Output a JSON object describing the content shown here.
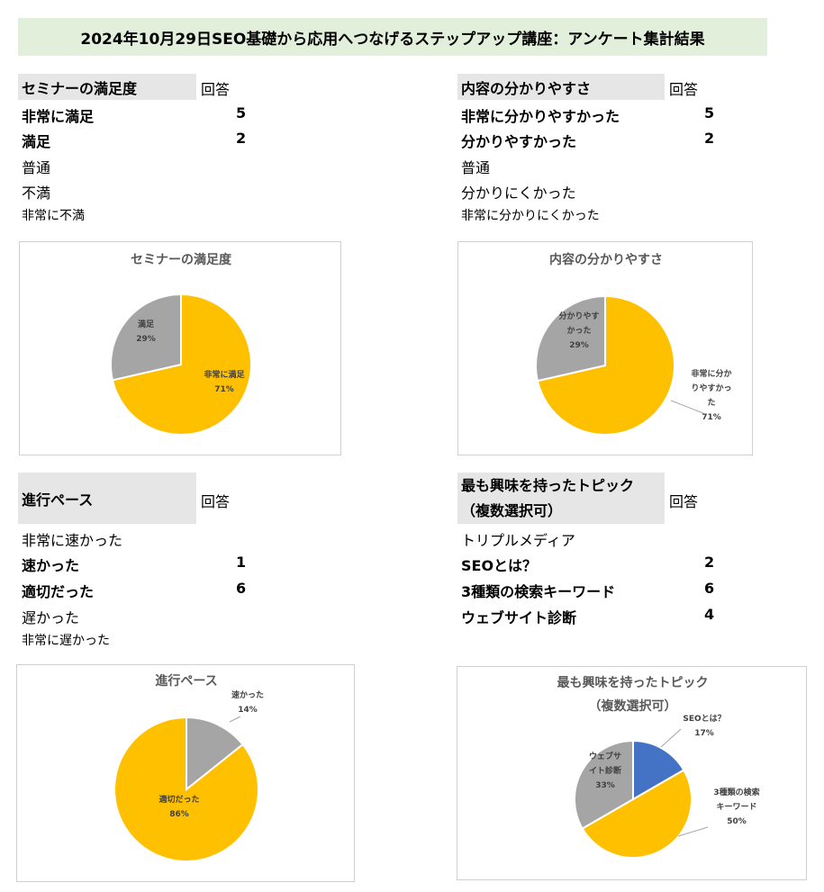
{
  "title": "2024年10月29日SEO基礎から応用へつなげるステップアップ講座：アンケート集計結果",
  "sections": [
    {
      "header": "セミナーの満足度",
      "answer_label": "回答",
      "rows": [
        {
          "label": "非常に満足",
          "value": "5"
        },
        {
          "label": "満足",
          "value": "2"
        },
        {
          "label": "普通",
          "value": ""
        },
        {
          "label": "不満",
          "value": ""
        },
        {
          "label": "非常に不満",
          "value": ""
        }
      ]
    },
    {
      "header": "内容の分かりやすさ",
      "answer_label": "回答",
      "rows": [
        {
          "label": "非常に分かりやすかった",
          "value": "5"
        },
        {
          "label": "分かりやすかった",
          "value": "2"
        },
        {
          "label": "普通",
          "value": ""
        },
        {
          "label": "分かりにくかった",
          "value": ""
        },
        {
          "label": "非常に分かりにくかった",
          "value": ""
        }
      ]
    },
    {
      "header": "進行ペース",
      "answer_label": "回答",
      "rows": [
        {
          "label": "非常に速かった",
          "value": ""
        },
        {
          "label": "速かった",
          "value": "1"
        },
        {
          "label": "適切だった",
          "value": "6"
        },
        {
          "label": "遅かった",
          "value": ""
        },
        {
          "label": "非常に遅かった",
          "value": ""
        }
      ]
    },
    {
      "header_lines": [
        "最も興味を持ったトピック",
        "（複数選択可）"
      ],
      "answer_label": "回答",
      "rows": [
        {
          "label": "トリプルメディア",
          "value": ""
        },
        {
          "label": "SEOとは？",
          "value": "2"
        },
        {
          "label": "3種類の検索キーワード",
          "value": "6"
        },
        {
          "label": "ウェブサイト診断",
          "value": "4"
        }
      ]
    }
  ],
  "colors": {
    "yellow": "#ffc000",
    "gray": "#a5a5a5",
    "blue": "#4472c4",
    "title_bg": "#e2efda",
    "header_bg": "#e7e6e6"
  },
  "chart_data": [
    {
      "type": "pie",
      "title": "セミナーの満足度",
      "slices": [
        {
          "label": "非常に満足",
          "value": 5,
          "percent": "71%",
          "color": "#ffc000",
          "label_lines": [
            "非常に満足",
            "71%"
          ]
        },
        {
          "label": "満足",
          "value": 2,
          "percent": "29%",
          "color": "#a5a5a5",
          "label_lines": [
            "満足",
            "29%"
          ]
        }
      ]
    },
    {
      "type": "pie",
      "title": "内容の分かりやすさ",
      "slices": [
        {
          "label": "非常に分かりやすかった",
          "value": 5,
          "percent": "71%",
          "color": "#ffc000",
          "label_lines": [
            "非常に分か",
            "りやすかっ",
            "た",
            "71%"
          ]
        },
        {
          "label": "分かりやすかった",
          "value": 2,
          "percent": "29%",
          "color": "#a5a5a5",
          "label_lines": [
            "分かりやす",
            "かった",
            "29%"
          ]
        }
      ]
    },
    {
      "type": "pie",
      "title": "進行ペース",
      "slices": [
        {
          "label": "速かった",
          "value": 1,
          "percent": "14%",
          "color": "#a5a5a5",
          "label_lines": [
            "速かった",
            "14%"
          ]
        },
        {
          "label": "適切だった",
          "value": 6,
          "percent": "86%",
          "color": "#ffc000",
          "label_lines": [
            "適切だった",
            "86%"
          ]
        }
      ]
    },
    {
      "type": "pie",
      "title_lines": [
        "最も興味を持ったトピック",
        "（複数選択可）"
      ],
      "slices": [
        {
          "label": "SEOとは？",
          "value": 2,
          "percent": "17%",
          "color": "#4472c4",
          "label_lines": [
            "SEOとは？",
            "17%"
          ]
        },
        {
          "label": "3種類の検索キーワード",
          "value": 6,
          "percent": "50%",
          "color": "#ffc000",
          "label_lines": [
            "3種類の検索",
            "キーワード",
            "50%"
          ]
        },
        {
          "label": "ウェブサイト診断",
          "value": 4,
          "percent": "33%",
          "color": "#a5a5a5",
          "label_lines": [
            "ウェブサ",
            "イト診断",
            "33%"
          ]
        }
      ]
    }
  ]
}
